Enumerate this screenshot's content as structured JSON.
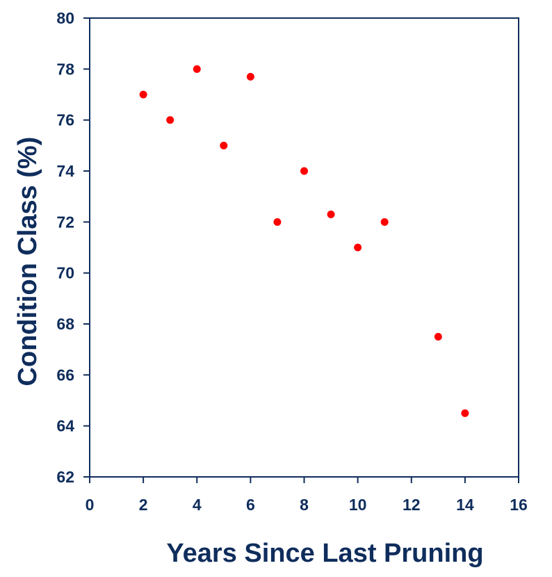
{
  "chart_data": {
    "type": "scatter",
    "title": "",
    "xlabel": "Years Since Last Pruning",
    "ylabel": "Condition Class (%)",
    "xlim": [
      0,
      16
    ],
    "ylim": [
      62,
      80
    ],
    "x_ticks": [
      0,
      2,
      4,
      6,
      8,
      10,
      12,
      14,
      16
    ],
    "y_ticks": [
      62,
      64,
      66,
      68,
      70,
      72,
      74,
      76,
      78,
      80
    ],
    "grid": false,
    "legend": "none",
    "series": [
      {
        "color": "#ff0000",
        "points": [
          {
            "x": 2,
            "y": 77.0
          },
          {
            "x": 3,
            "y": 76.0
          },
          {
            "x": 4,
            "y": 78.0
          },
          {
            "x": 5,
            "y": 75.0
          },
          {
            "x": 6,
            "y": 77.7
          },
          {
            "x": 7,
            "y": 72.0
          },
          {
            "x": 8,
            "y": 74.0
          },
          {
            "x": 9,
            "y": 72.3
          },
          {
            "x": 10,
            "y": 71.0
          },
          {
            "x": 11,
            "y": 72.0
          },
          {
            "x": 13,
            "y": 67.5
          },
          {
            "x": 14,
            "y": 64.5
          }
        ]
      }
    ],
    "axis_color": "#0f2d5c"
  }
}
